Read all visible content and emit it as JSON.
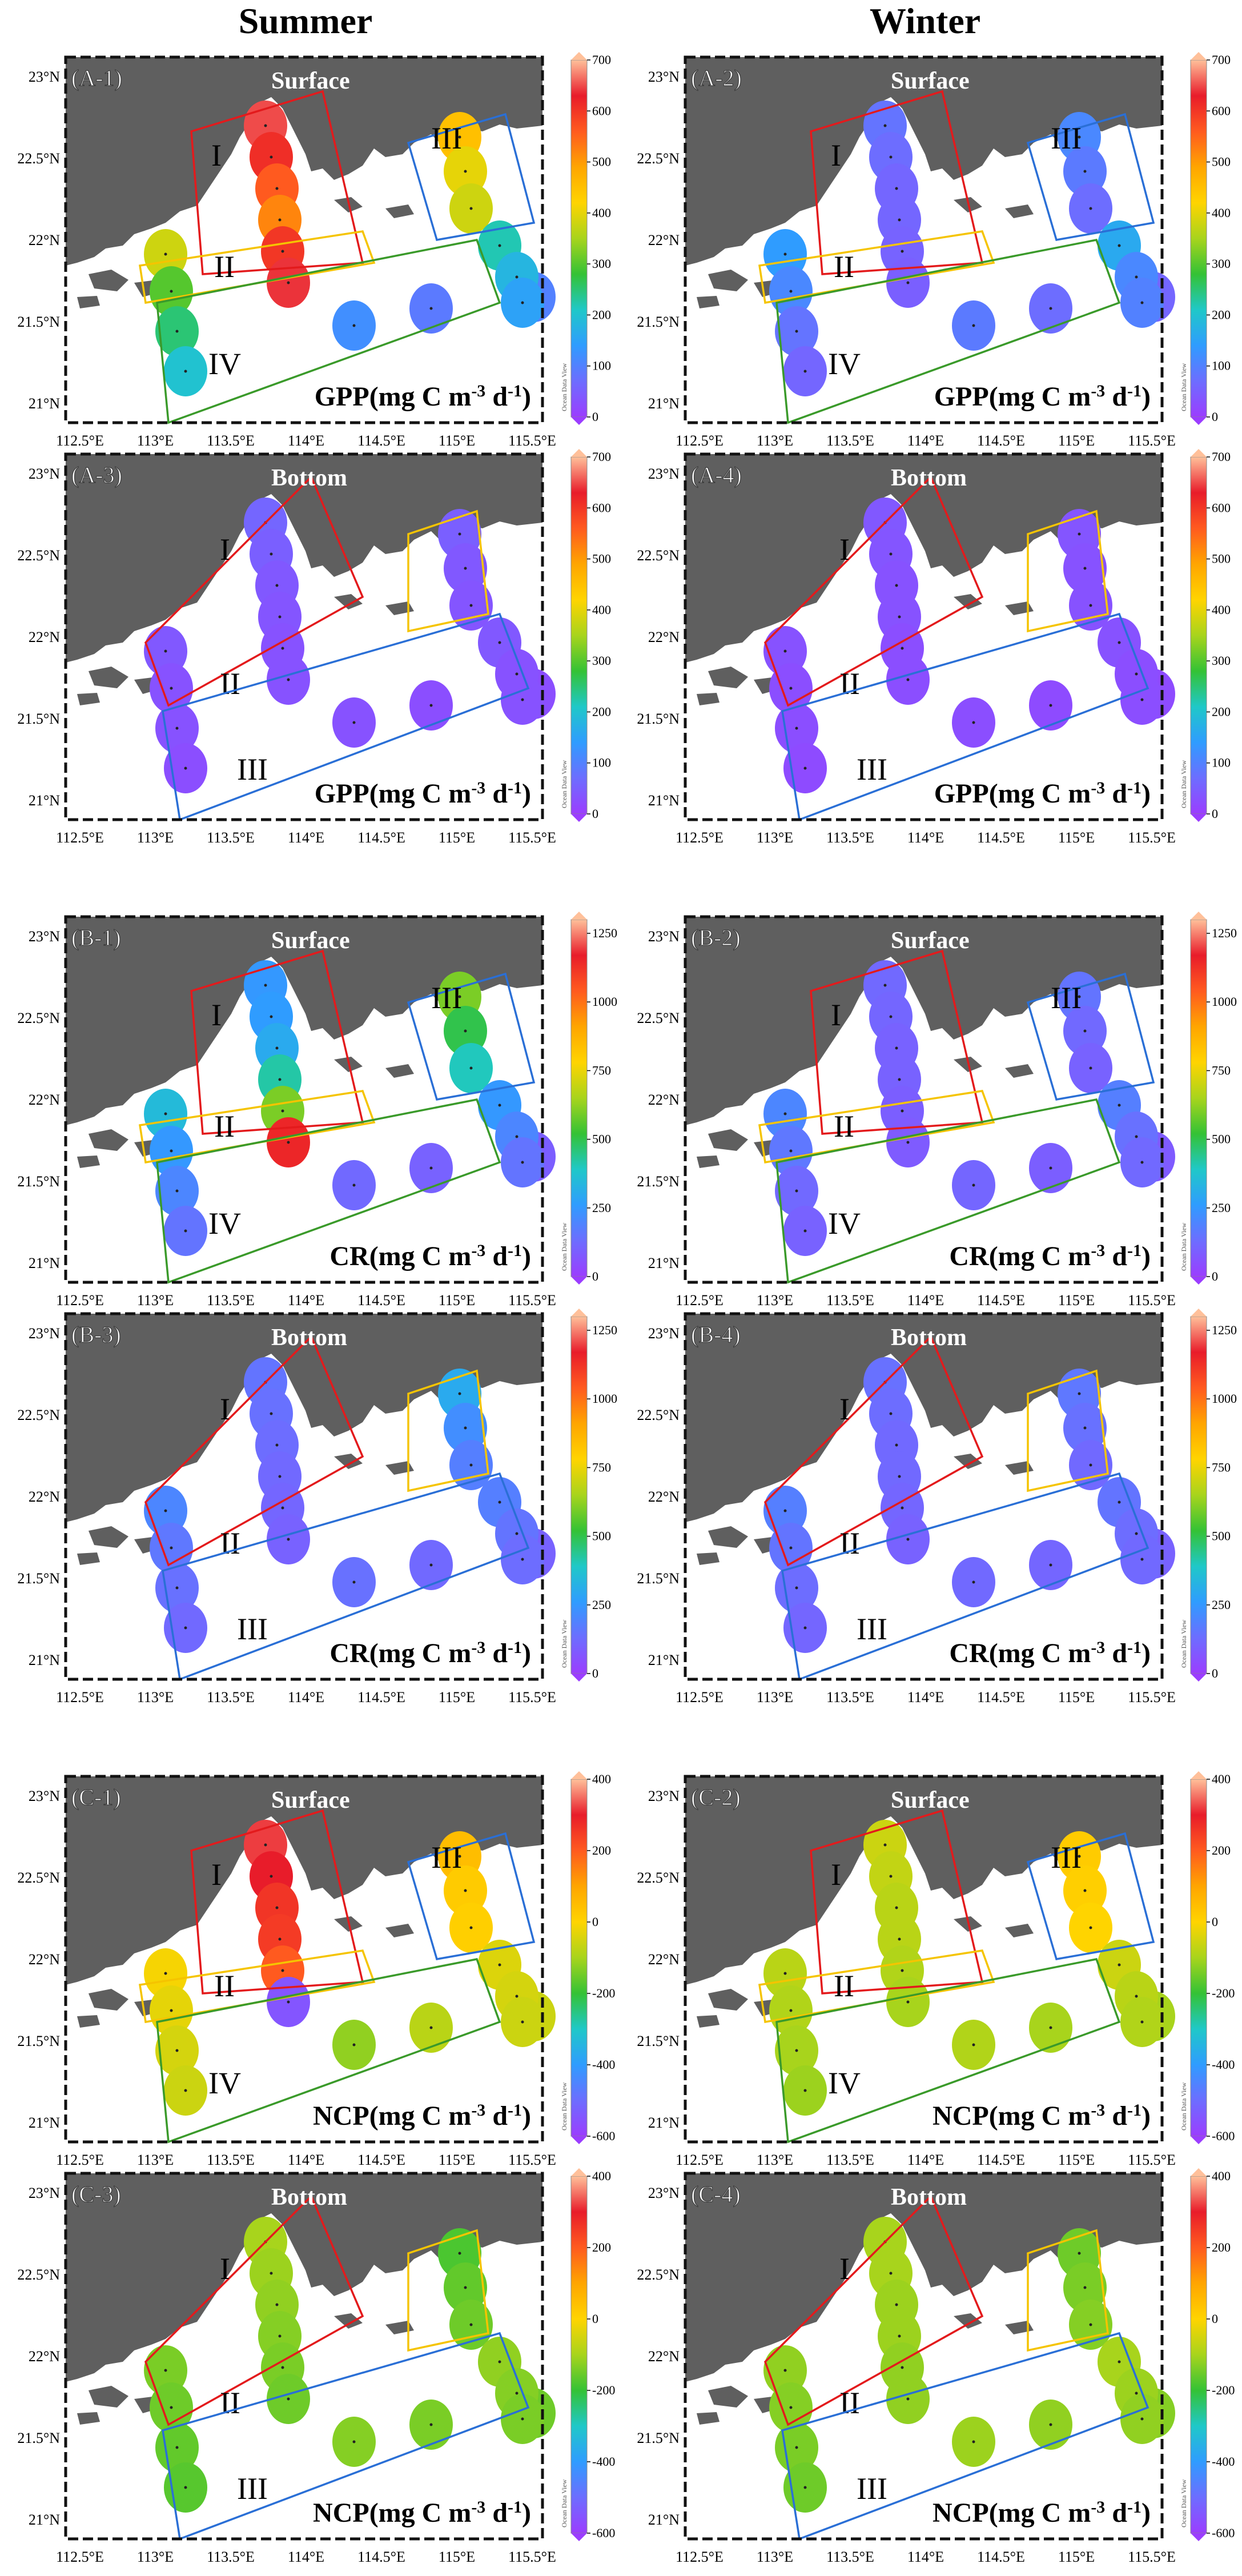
{
  "columns": [
    "Summer",
    "Winter"
  ],
  "axes": {
    "lat_ticks": [
      "23°N",
      "22.5°N",
      "22°N",
      "21.5°N",
      "21°N"
    ],
    "lon_ticks": [
      "112.5°E",
      "113°E",
      "113.5°E",
      "114°E",
      "114.5°E",
      "115°E",
      "115.5°E"
    ]
  },
  "watermark": "Ocean Data View",
  "colors": {
    "land": "#5f5f5f",
    "sea": "#ffffff",
    "region_red": "#e31a1c",
    "region_yellow": "#f5c400",
    "region_blue": "#2a6fd6",
    "region_green": "#3a9a2a"
  },
  "colorscale_stops": [
    "#9b3dff",
    "#6d6dff",
    "#2f9cff",
    "#1fc8c8",
    "#34c235",
    "#a8d41c",
    "#ffd400",
    "#ffa500",
    "#ff5a1f",
    "#e81c2a",
    "#ffc09a"
  ],
  "panels": [
    {
      "id": "A-1",
      "label": "(A-1)",
      "layer": "Surface",
      "metric_html": "GPP(mg C m<sup>-3</sup> d<sup>-1</sup>)",
      "cb_ticks": [
        "700",
        "600",
        "500",
        "400",
        "300",
        "200",
        "100",
        "0"
      ],
      "cb_min": 0,
      "cb_max": 700,
      "regions": [
        {
          "numeral": "I",
          "color": "red"
        },
        {
          "numeral": "II",
          "color": "yellow"
        },
        {
          "numeral": "III",
          "color": "blue"
        },
        {
          "numeral": "IV",
          "color": "green"
        }
      ],
      "values": {
        "a": [
          650,
          610,
          560,
          520,
          600,
          640
        ],
        "b": [
          450,
          400,
          380
        ],
        "c": [
          380,
          300,
          250,
          200
        ],
        "d": [
          120,
          90,
          100
        ],
        "e": [
          220,
          180,
          150
        ]
      }
    },
    {
      "id": "A-2",
      "label": "(A-2)",
      "layer": "Surface",
      "metric_html": "GPP(mg C m<sup>-3</sup> d<sup>-1</sup>)",
      "cb_ticks": [
        "700",
        "600",
        "500",
        "400",
        "300",
        "200",
        "100",
        "0"
      ],
      "cb_min": 0,
      "cb_max": 700,
      "regions": [
        {
          "numeral": "I",
          "color": "red"
        },
        {
          "numeral": "II",
          "color": "yellow"
        },
        {
          "numeral": "III",
          "color": "blue"
        },
        {
          "numeral": "IV",
          "color": "green"
        }
      ],
      "values": {
        "a": [
          80,
          70,
          60,
          60,
          55,
          50
        ],
        "b": [
          110,
          90,
          70
        ],
        "c": [
          140,
          110,
          80,
          60
        ],
        "d": [
          90,
          70,
          60
        ],
        "e": [
          160,
          110,
          100
        ]
      }
    },
    {
      "id": "A-3",
      "label": "(A-3)",
      "layer": "Bottom",
      "metric_html": "GPP(mg C m<sup>-3</sup> d<sup>-1</sup>)",
      "cb_ticks": [
        "700",
        "600",
        "500",
        "400",
        "300",
        "200",
        "100",
        "0"
      ],
      "cb_min": 0,
      "cb_max": 700,
      "regions": [
        {
          "numeral": "I",
          "color": "red"
        },
        {
          "numeral": "II",
          "color": "yellow"
        },
        {
          "numeral": "III",
          "color": "blue"
        }
      ],
      "values": {
        "a": [
          60,
          50,
          40,
          35,
          30,
          30
        ],
        "b": [
          50,
          40,
          35
        ],
        "c": [
          40,
          30,
          30,
          25
        ],
        "d": [
          30,
          25,
          25
        ],
        "e": [
          40,
          30,
          30
        ]
      }
    },
    {
      "id": "A-4",
      "label": "(A-4)",
      "layer": "Bottom",
      "metric_html": "GPP(mg C m<sup>-3</sup> d<sup>-1</sup>)",
      "cb_ticks": [
        "700",
        "600",
        "500",
        "400",
        "300",
        "200",
        "100",
        "0"
      ],
      "cb_min": 0,
      "cb_max": 700,
      "regions": [
        {
          "numeral": "I",
          "color": "red"
        },
        {
          "numeral": "II",
          "color": "yellow"
        },
        {
          "numeral": "III",
          "color": "blue"
        }
      ],
      "values": {
        "a": [
          40,
          35,
          30,
          30,
          25,
          25
        ],
        "b": [
          35,
          30,
          30
        ],
        "c": [
          30,
          25,
          25,
          20
        ],
        "d": [
          25,
          20,
          20
        ],
        "e": [
          30,
          25,
          25
        ]
      }
    },
    {
      "id": "B-1",
      "label": "(B-1)",
      "layer": "Surface",
      "metric_html": "CR(mg C m<sup>-3</sup> d<sup>-1</sup>)",
      "cb_ticks": [
        "1250",
        "1000",
        "750",
        "500",
        "250",
        "0"
      ],
      "cb_min": 0,
      "cb_max": 1300,
      "regions": [
        {
          "numeral": "I",
          "color": "red"
        },
        {
          "numeral": "II",
          "color": "yellow"
        },
        {
          "numeral": "III",
          "color": "blue"
        },
        {
          "numeral": "IV",
          "color": "green"
        }
      ],
      "values": {
        "a": [
          250,
          260,
          300,
          420,
          600,
          1150
        ],
        "b": [
          600,
          500,
          400
        ],
        "c": [
          350,
          250,
          200,
          150
        ],
        "d": [
          120,
          100,
          90
        ],
        "e": [
          250,
          200,
          150
        ]
      }
    },
    {
      "id": "B-2",
      "label": "(B-2)",
      "layer": "Surface",
      "metric_html": "CR(mg C m<sup>-3</sup> d<sup>-1</sup>)",
      "cb_ticks": [
        "1250",
        "1000",
        "750",
        "500",
        "250",
        "0"
      ],
      "cb_min": 0,
      "cb_max": 1300,
      "regions": [
        {
          "numeral": "I",
          "color": "red"
        },
        {
          "numeral": "II",
          "color": "yellow"
        },
        {
          "numeral": "III",
          "color": "blue"
        },
        {
          "numeral": "IV",
          "color": "green"
        }
      ],
      "values": {
        "a": [
          120,
          110,
          100,
          100,
          90,
          80
        ],
        "b": [
          150,
          120,
          100
        ],
        "c": [
          200,
          160,
          120,
          100
        ],
        "d": [
          110,
          90,
          80
        ],
        "e": [
          180,
          140,
          120
        ]
      }
    },
    {
      "id": "B-3",
      "label": "(B-3)",
      "layer": "Bottom",
      "metric_html": "CR(mg C m<sup>-3</sup> d<sup>-1</sup>)",
      "cb_ticks": [
        "1250",
        "1000",
        "750",
        "500",
        "250",
        "0"
      ],
      "cb_min": 0,
      "cb_max": 1300,
      "regions": [
        {
          "numeral": "I",
          "color": "red"
        },
        {
          "numeral": "II",
          "color": "yellow"
        },
        {
          "numeral": "III",
          "color": "blue"
        }
      ],
      "values": {
        "a": [
          150,
          140,
          130,
          120,
          110,
          100
        ],
        "b": [
          300,
          220,
          180
        ],
        "c": [
          200,
          160,
          140,
          120
        ],
        "d": [
          140,
          120,
          100
        ],
        "e": [
          180,
          150,
          130
        ]
      }
    },
    {
      "id": "B-4",
      "label": "(B-4)",
      "layer": "Bottom",
      "metric_html": "CR(mg C m<sup>-3</sup> d<sup>-1</sup>)",
      "cb_ticks": [
        "1250",
        "1000",
        "750",
        "500",
        "250",
        "0"
      ],
      "cb_min": 0,
      "cb_max": 1300,
      "regions": [
        {
          "numeral": "I",
          "color": "red"
        },
        {
          "numeral": "II",
          "color": "yellow"
        },
        {
          "numeral": "III",
          "color": "blue"
        }
      ],
      "values": {
        "a": [
          140,
          130,
          120,
          120,
          110,
          100
        ],
        "b": [
          160,
          140,
          120
        ],
        "c": [
          180,
          150,
          130,
          110
        ],
        "d": [
          120,
          110,
          100
        ],
        "e": [
          150,
          130,
          120
        ]
      }
    },
    {
      "id": "C-1",
      "label": "(C-1)",
      "layer": "Surface",
      "metric_html": "NCP(mg C m<sup>-3</sup> d<sup>-1</sup>)",
      "cb_ticks": [
        "400",
        "200",
        "0",
        "-200",
        "-400",
        "-600"
      ],
      "cb_min": -600,
      "cb_max": 400,
      "regions": [
        {
          "numeral": "I",
          "color": "red"
        },
        {
          "numeral": "II",
          "color": "yellow"
        },
        {
          "numeral": "III",
          "color": "blue"
        },
        {
          "numeral": "IV",
          "color": "green"
        }
      ],
      "values": {
        "a": [
          320,
          300,
          260,
          250,
          200,
          -550
        ],
        "b": [
          50,
          20,
          10
        ],
        "c": [
          -10,
          -30,
          -50,
          -60
        ],
        "d": [
          -120,
          -80,
          -60
        ],
        "e": [
          -40,
          -50,
          -60
        ]
      }
    },
    {
      "id": "C-2",
      "label": "(C-2)",
      "layer": "Surface",
      "metric_html": "NCP(mg C m<sup>-3</sup> d<sup>-1</sup>)",
      "cb_ticks": [
        "400",
        "200",
        "0",
        "-200",
        "-400",
        "-600"
      ],
      "cb_min": -600,
      "cb_max": 400,
      "regions": [
        {
          "numeral": "I",
          "color": "red"
        },
        {
          "numeral": "II",
          "color": "yellow"
        },
        {
          "numeral": "III",
          "color": "blue"
        },
        {
          "numeral": "IV",
          "color": "green"
        }
      ],
      "values": {
        "a": [
          -60,
          -70,
          -80,
          -80,
          -90,
          -100
        ],
        "b": [
          20,
          10,
          0
        ],
        "c": [
          -80,
          -90,
          -100,
          -110
        ],
        "d": [
          -90,
          -100,
          -100
        ],
        "e": [
          -60,
          -80,
          -90
        ]
      }
    },
    {
      "id": "C-3",
      "label": "(C-3)",
      "layer": "Bottom",
      "metric_html": "NCP(mg C m<sup>-3</sup> d<sup>-1</sup>)",
      "cb_ticks": [
        "400",
        "200",
        "0",
        "-200",
        "-400",
        "-600"
      ],
      "cb_min": -600,
      "cb_max": 400,
      "regions": [
        {
          "numeral": "I",
          "color": "red"
        },
        {
          "numeral": "II",
          "color": "yellow"
        },
        {
          "numeral": "III",
          "color": "blue"
        }
      ],
      "values": {
        "a": [
          -100,
          -110,
          -120,
          -130,
          -140,
          -150
        ],
        "b": [
          -180,
          -160,
          -150
        ],
        "c": [
          -140,
          -150,
          -160,
          -170
        ],
        "d": [
          -130,
          -140,
          -150
        ],
        "e": [
          -120,
          -130,
          -140
        ]
      }
    },
    {
      "id": "C-4",
      "label": "(C-4)",
      "layer": "Bottom",
      "metric_html": "NCP(mg C m<sup>-3</sup> d<sup>-1</sup>)",
      "cb_ticks": [
        "400",
        "200",
        "0",
        "-200",
        "-400",
        "-600"
      ],
      "cb_min": -600,
      "cb_max": 400,
      "regions": [
        {
          "numeral": "I",
          "color": "red"
        },
        {
          "numeral": "II",
          "color": "yellow"
        },
        {
          "numeral": "III",
          "color": "blue"
        }
      ],
      "values": {
        "a": [
          -100,
          -100,
          -110,
          -110,
          -120,
          -120
        ],
        "b": [
          -150,
          -140,
          -130
        ],
        "c": [
          -120,
          -130,
          -140,
          -150
        ],
        "d": [
          -110,
          -120,
          -130
        ],
        "e": [
          -100,
          -110,
          -120
        ]
      }
    }
  ]
}
